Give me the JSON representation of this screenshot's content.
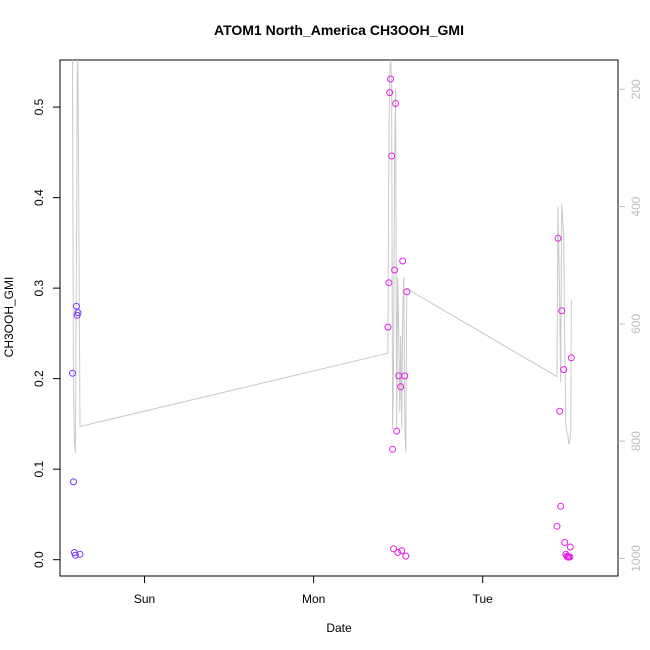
{
  "chart_data": {
    "type": "scatter",
    "title": "ATOM1 North_America CH3OOH_GMI",
    "xlabel": "Date",
    "ylabel": "CH3OOH_GMI",
    "xlim": [
      0.0,
      3.3
    ],
    "ylim": [
      -0.018,
      0.552
    ],
    "y2lim": [
      1030,
      150
    ],
    "x_ticks": [
      {
        "value": 0.5,
        "label": "Sun"
      },
      {
        "value": 1.5,
        "label": "Mon"
      },
      {
        "value": 2.5,
        "label": "Tue"
      }
    ],
    "y_ticks": [
      {
        "value": 0.0,
        "label": "0.0"
      },
      {
        "value": 0.1,
        "label": "0.1"
      },
      {
        "value": 0.2,
        "label": "0.2"
      },
      {
        "value": 0.3,
        "label": "0.3"
      },
      {
        "value": 0.4,
        "label": "0.4"
      },
      {
        "value": 0.5,
        "label": "0.5"
      }
    ],
    "y2_ticks": [
      {
        "value": 200,
        "label": "200"
      },
      {
        "value": 400,
        "label": "400"
      },
      {
        "value": 600,
        "label": "600"
      },
      {
        "value": 800,
        "label": "800"
      },
      {
        "value": 1000,
        "label": "1000"
      }
    ],
    "line_color": "#c8c8c8",
    "points": [
      {
        "x": 0.074,
        "y": 0.206,
        "color": "#7b33ff"
      },
      {
        "x": 0.08,
        "y": 0.086,
        "color": "#7b33ff"
      },
      {
        "x": 0.085,
        "y": 0.008,
        "color": "#7b33ff"
      },
      {
        "x": 0.091,
        "y": 0.005,
        "color": "#7b33ff"
      },
      {
        "x": 0.097,
        "y": 0.28,
        "color": "#7b33ff"
      },
      {
        "x": 0.102,
        "y": 0.27,
        "color": "#7b33ff"
      },
      {
        "x": 0.106,
        "y": 0.273,
        "color": "#7b33ff"
      },
      {
        "x": 0.118,
        "y": 0.006,
        "color": "#7b33ff"
      },
      {
        "x": 1.939,
        "y": 0.257,
        "color": "#e81ee8"
      },
      {
        "x": 1.945,
        "y": 0.306,
        "color": "#e81ee8"
      },
      {
        "x": 1.95,
        "y": 0.516,
        "color": "#e81ee8"
      },
      {
        "x": 1.955,
        "y": 0.531,
        "color": "#e81ee8"
      },
      {
        "x": 1.961,
        "y": 0.446,
        "color": "#e81ee8"
      },
      {
        "x": 1.967,
        "y": 0.122,
        "color": "#e81ee8"
      },
      {
        "x": 1.973,
        "y": 0.012,
        "color": "#e81ee8"
      },
      {
        "x": 1.979,
        "y": 0.32,
        "color": "#e81ee8"
      },
      {
        "x": 1.985,
        "y": 0.504,
        "color": "#e81ee8"
      },
      {
        "x": 1.991,
        "y": 0.142,
        "color": "#e81ee8"
      },
      {
        "x": 1.997,
        "y": 0.008,
        "color": "#e81ee8"
      },
      {
        "x": 2.003,
        "y": 0.203,
        "color": "#e81ee8"
      },
      {
        "x": 2.015,
        "y": 0.191,
        "color": "#e81ee8"
      },
      {
        "x": 2.021,
        "y": 0.01,
        "color": "#e81ee8"
      },
      {
        "x": 2.027,
        "y": 0.33,
        "color": "#e81ee8"
      },
      {
        "x": 2.039,
        "y": 0.203,
        "color": "#e81ee8"
      },
      {
        "x": 2.045,
        "y": 0.004,
        "color": "#e81ee8"
      },
      {
        "x": 2.051,
        "y": 0.296,
        "color": "#e81ee8"
      },
      {
        "x": 2.939,
        "y": 0.037,
        "color": "#e81ee8"
      },
      {
        "x": 2.945,
        "y": 0.355,
        "color": "#e81ee8"
      },
      {
        "x": 2.955,
        "y": 0.164,
        "color": "#e81ee8"
      },
      {
        "x": 2.961,
        "y": 0.059,
        "color": "#e81ee8"
      },
      {
        "x": 2.967,
        "y": 0.275,
        "color": "#e81ee8"
      },
      {
        "x": 2.979,
        "y": 0.21,
        "color": "#e81ee8"
      },
      {
        "x": 2.985,
        "y": 0.019,
        "color": "#e81ee8"
      },
      {
        "x": 2.991,
        "y": 0.006,
        "color": "#e81ee8"
      },
      {
        "x": 2.997,
        "y": 0.004,
        "color": "#e81ee8"
      },
      {
        "x": 3.003,
        "y": 0.003,
        "color": "#e81ee8"
      },
      {
        "x": 3.009,
        "y": 0.003,
        "color": "#e81ee8"
      },
      {
        "x": 3.015,
        "y": 0.003,
        "color": "#e81ee8"
      },
      {
        "x": 3.018,
        "y": 0.014,
        "color": "#e81ee8"
      },
      {
        "x": 3.024,
        "y": 0.223,
        "color": "#e81ee8"
      }
    ],
    "pressure_line": [
      [
        0.074,
        150
      ],
      [
        0.08,
        720
      ],
      [
        0.085,
        800
      ],
      [
        0.091,
        820
      ],
      [
        0.097,
        500
      ],
      [
        0.102,
        180
      ],
      [
        0.106,
        150
      ],
      [
        0.118,
        775
      ],
      [
        1.939,
        650
      ],
      [
        1.945,
        300
      ],
      [
        1.95,
        170
      ],
      [
        1.955,
        150
      ],
      [
        1.961,
        180
      ],
      [
        1.967,
        780
      ],
      [
        1.973,
        660
      ],
      [
        1.979,
        320
      ],
      [
        1.985,
        200
      ],
      [
        1.991,
        780
      ],
      [
        1.997,
        520
      ],
      [
        2.003,
        610
      ],
      [
        2.009,
        750
      ],
      [
        2.015,
        620
      ],
      [
        2.021,
        780
      ],
      [
        2.027,
        580
      ],
      [
        2.033,
        520
      ],
      [
        2.039,
        780
      ],
      [
        2.045,
        820
      ],
      [
        2.051,
        540
      ],
      [
        2.939,
        690
      ],
      [
        2.945,
        400
      ],
      [
        2.955,
        560
      ],
      [
        2.961,
        700
      ],
      [
        2.967,
        395
      ],
      [
        2.979,
        450
      ],
      [
        2.985,
        620
      ],
      [
        2.991,
        770
      ],
      [
        2.997,
        785
      ],
      [
        3.003,
        790
      ],
      [
        3.009,
        805
      ],
      [
        3.015,
        800
      ],
      [
        3.021,
        780
      ],
      [
        3.024,
        560
      ]
    ]
  }
}
